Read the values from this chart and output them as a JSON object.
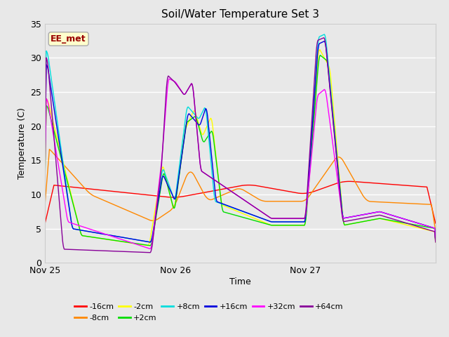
{
  "title": "Soil/Water Temperature Set 3",
  "ylabel": "Temperature (C)",
  "xlabel": "Time",
  "watermark": "EE_met",
  "ylim": [
    0,
    35
  ],
  "yticks": [
    0,
    5,
    10,
    15,
    20,
    25,
    30,
    35
  ],
  "xtick_labels": [
    "Nov 25",
    "Nov 26",
    "Nov 27"
  ],
  "xtick_positions": [
    0,
    288,
    576
  ],
  "total_points": 865,
  "fig_bg": "#e8e8e8",
  "plot_bg": "#e8e8e8",
  "grid_color": "#ffffff",
  "series_colors": {
    "-16cm": "#ff0000",
    "-8cm": "#ff8800",
    "-2cm": "#ffff00",
    "+2cm": "#00dd00",
    "+8cm": "#00dddd",
    "+16cm": "#0000dd",
    "+32cm": "#ff00ff",
    "+64cm": "#880099"
  }
}
